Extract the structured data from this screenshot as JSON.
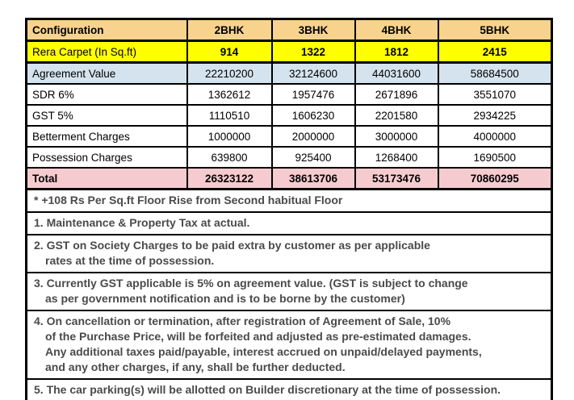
{
  "colors": {
    "header_bg": "#f8d38e",
    "carpet_row_bg": "#ffff00",
    "agreement_row_bg": "#d5e3ee",
    "total_row_bg": "#f6cbd0",
    "border": "#000000",
    "note_text": "#4a4a4a"
  },
  "table": {
    "header": [
      "Configuration",
      "2BHK",
      "3BHK",
      "4BHK",
      "5BHK"
    ],
    "rows": [
      {
        "label": "Rera Carpet (In Sq.ft)",
        "values": [
          "914",
          "1322",
          "1812",
          "2415"
        ]
      },
      {
        "label": "Agreement Value",
        "values": [
          "22210200",
          "32124600",
          "44031600",
          "58684500"
        ]
      },
      {
        "label": "SDR 6%",
        "values": [
          "1362612",
          "1957476",
          "2671896",
          "3551070"
        ]
      },
      {
        "label": "GST 5%",
        "values": [
          "1110510",
          "1606230",
          "2201580",
          "2934225"
        ]
      },
      {
        "label": "Betterment Charges",
        "values": [
          "1000000",
          "2000000",
          "3000000",
          "4000000"
        ]
      },
      {
        "label": "Possession Charges",
        "values": [
          "639800",
          "925400",
          "1268400",
          "1690500"
        ]
      },
      {
        "label": "Total",
        "values": [
          "26323122",
          "38613706",
          "53173476",
          "70860295"
        ]
      }
    ]
  },
  "notes": [
    {
      "lines": [
        "* +108 Rs Per Sq.ft Floor Rise from Second habitual Floor"
      ]
    },
    {
      "lines": [
        "1. Maintenance & Property Tax at actual."
      ]
    },
    {
      "lines": [
        "2. GST on Society Charges to be paid extra by customer as per applicable",
        "rates at the time of possession."
      ]
    },
    {
      "lines": [
        "3. Currently GST applicable is 5% on agreement value. (GST is subject to change",
        "as per government notification and is to be borne by the customer)"
      ]
    },
    {
      "lines": [
        "4. On cancellation or termination, after registration of Agreement of Sale, 10%",
        "of the Purchase Price, will be forfeited and adjusted as pre-estimated damages.",
        "Any additional taxes paid/payable, interest accrued on unpaid/delayed payments,",
        "and any other charges, if any, shall be further deducted."
      ]
    },
    {
      "lines": [
        "5. The car parking(s) will be allotted on Builder discretionary at the time of possession."
      ]
    }
  ]
}
